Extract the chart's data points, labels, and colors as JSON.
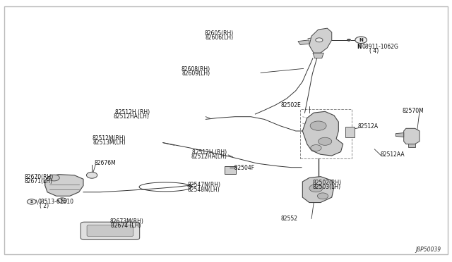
{
  "background_color": "#ffffff",
  "line_color": "#333333",
  "part_face": "#d8d8d8",
  "part_edge": "#444444",
  "diagram_ref": "J8P50039",
  "labels": {
    "82605_82606": [
      0.533,
      0.855,
      "82605〈RH〉\n82606〈LH〉"
    ],
    "08911": [
      0.795,
      0.81,
      "NＩ08911-1062G\n（ 4）"
    ],
    "82608_82609": [
      0.465,
      0.72,
      "82608〈RH〉\n82609〈LH〉"
    ],
    "82502E": [
      0.635,
      0.595,
      "82502E"
    ],
    "82570M": [
      0.895,
      0.575,
      "82570M"
    ],
    "82512H_top": [
      0.33,
      0.565,
      "82512H 〈RH〉\n82512HA〈LH〉"
    ],
    "82512A": [
      0.795,
      0.515,
      "82512A"
    ],
    "82512M": [
      0.28,
      0.465,
      "82512M〈RH〉\n82513M〈LH〉"
    ],
    "82512H_mid": [
      0.505,
      0.415,
      "82512H 〈RH〉\n82512HA〈LH〉"
    ],
    "82512AA": [
      0.845,
      0.405,
      "82512AA"
    ],
    "82676M": [
      0.21,
      0.375,
      "82676M"
    ],
    "82504F": [
      0.518,
      0.355,
      "—82504F"
    ],
    "82670_82671": [
      0.055,
      0.315,
      "82670〈RH〉\n82671〈LH〉"
    ],
    "08513": [
      0.058,
      0.218,
      "Ⓝ08513-61610\n（ 2）"
    ],
    "82547N_82548N": [
      0.415,
      0.285,
      "82547N〈RH〉\n82548N〈LH〉"
    ],
    "82502_82503": [
      0.695,
      0.295,
      "82502〈RH〉\n82503〈LH〉"
    ],
    "82673M_82674": [
      0.245,
      0.145,
      "82673M〈RH〉\n82674 〈LH〉"
    ],
    "82552": [
      0.625,
      0.155,
      "82552"
    ]
  }
}
